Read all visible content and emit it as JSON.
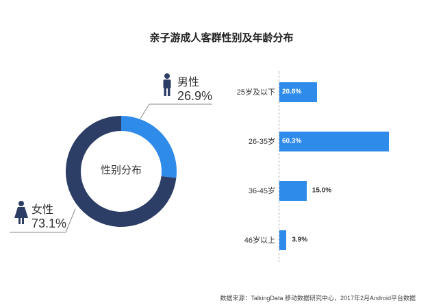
{
  "title": "亲子游成人客群性别及年龄分布",
  "colors": {
    "male": "#2f8bea",
    "female": "#2c3e66",
    "bar": "#2f8bea"
  },
  "donut": {
    "center_label": "性别分布"
  },
  "legend": {
    "male": {
      "name": "男性",
      "pct": "26.9%",
      "icon": "male-person-icon"
    },
    "female": {
      "name": "女性",
      "pct": "73.1%",
      "icon": "female-person-icon"
    }
  },
  "chart_data": [
    {
      "type": "pie",
      "title": "性别分布",
      "categories": [
        "男性",
        "女性"
      ],
      "values": [
        26.9,
        73.1
      ]
    },
    {
      "type": "bar",
      "orientation": "horizontal",
      "categories": [
        "25岁及以下",
        "26-35岁",
        "36-45岁",
        "46岁以上"
      ],
      "values": [
        20.8,
        60.3,
        15.0,
        3.9
      ],
      "labels": [
        "20.8%",
        "60.3%",
        "15.0%",
        "3.9%"
      ],
      "xlim": [
        0,
        60.3
      ]
    }
  ],
  "source": "数据来源：TalkingData 移动数据研究中心，2017年2月Android平台数据"
}
